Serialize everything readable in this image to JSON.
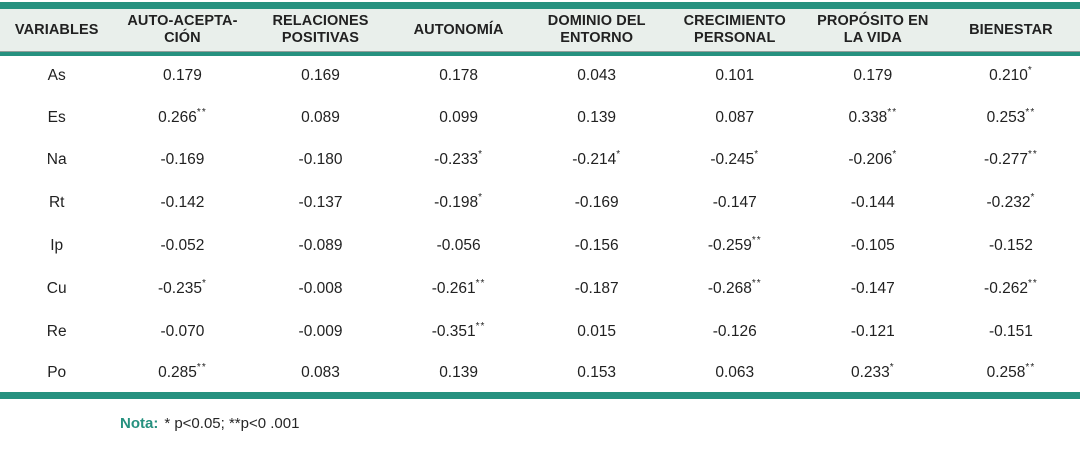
{
  "colors": {
    "accent_teal": "#26917F",
    "header_bg": "#E9EFEB",
    "body_text": "#212121"
  },
  "chart_data": {
    "type": "table",
    "columns": [
      "VARIABLES",
      "AUTO-ACEPTA-\nCIÓN",
      "RELACIONES\nPOSITIVAS",
      "AUTONOMÍA",
      "DOMINIO DEL\nENTORNO",
      "CRECIMIENTO\nPERSONAL",
      "PROPÓSITO EN\nLA VIDA",
      "BIENESTAR"
    ],
    "rows": [
      {
        "label": "As",
        "values": [
          "0.179",
          "0.169",
          "0.178",
          "0.043",
          "0.101",
          "0.179",
          "0.210*"
        ]
      },
      {
        "label": "Es",
        "values": [
          "0.266**",
          "0.089",
          "0.099",
          "0.139",
          "0.087",
          "0.338**",
          "0.253**"
        ]
      },
      {
        "label": "Na",
        "values": [
          "-0.169",
          "-0.180",
          "-0.233*",
          "-0.214*",
          "-0.245*",
          "-0.206*",
          "-0.277**"
        ]
      },
      {
        "label": "Rt",
        "values": [
          "-0.142",
          "-0.137",
          "-0.198*",
          "-0.169",
          "-0.147",
          "-0.144",
          "-0.232*"
        ]
      },
      {
        "label": "Ip",
        "values": [
          "-0.052",
          "-0.089",
          "-0.056",
          "-0.156",
          "-0.259**",
          "-0.105",
          "-0.152"
        ]
      },
      {
        "label": "Cu",
        "values": [
          "-0.235*",
          "-0.008",
          "-0.261**",
          "-0.187",
          "-0.268**",
          "-0.147",
          "-0.262**"
        ]
      },
      {
        "label": "Re",
        "values": [
          "-0.070",
          "-0.009",
          "-0.351**",
          "0.015",
          "-0.126",
          "-0.121",
          "-0.151"
        ]
      },
      {
        "label": "Po",
        "values": [
          "0.285**",
          "0.083",
          "0.139",
          "0.153",
          "0.063",
          "0.233*",
          "0.258**"
        ]
      }
    ],
    "note_prefix": "Nota:",
    "note_text": "* p<0.05; **p<0 .001"
  }
}
